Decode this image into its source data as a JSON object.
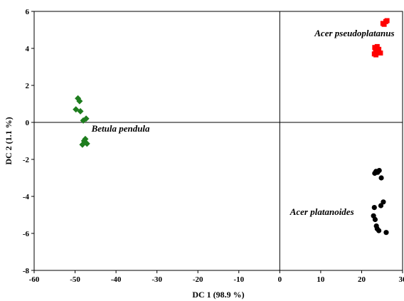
{
  "chart_data": {
    "type": "scatter",
    "title": "",
    "xlabel": "DC 1 (98.9 %)",
    "ylabel": "DC 2 (1.1 %)",
    "xlim": [
      -60,
      30
    ],
    "ylim": [
      -8,
      6
    ],
    "x_ticks": [
      -60,
      -50,
      -40,
      -30,
      -20,
      -10,
      0,
      10,
      20,
      30
    ],
    "y_ticks": [
      -8,
      -6,
      -4,
      -2,
      0,
      2,
      4,
      6
    ],
    "x_tick_labels": [
      "-60",
      "-50",
      "-40",
      "-30",
      "-20",
      "-10",
      "0",
      "10",
      "20",
      "30"
    ],
    "y_tick_labels": [
      "-8",
      "-6",
      "-4",
      "-2",
      "0",
      "2",
      "4",
      "6"
    ],
    "grid": false,
    "reference_lines": {
      "x": 0,
      "y": 0
    },
    "series": [
      {
        "name": "Acer pseudoplatanus",
        "marker": "square",
        "color": "#ff0000",
        "points": [
          [
            25.2,
            5.35
          ],
          [
            25.9,
            5.45
          ],
          [
            26.2,
            5.5
          ],
          [
            25.5,
            5.3
          ],
          [
            23.2,
            4.05
          ],
          [
            23.8,
            4.1
          ],
          [
            23.4,
            3.9
          ],
          [
            24.0,
            3.8
          ],
          [
            23.1,
            3.7
          ],
          [
            24.6,
            3.75
          ],
          [
            23.5,
            3.65
          ],
          [
            24.2,
            3.95
          ]
        ]
      },
      {
        "name": "Betula pendula",
        "marker": "diamond",
        "color": "#1e7d1e",
        "points": [
          [
            -49.3,
            1.3
          ],
          [
            -48.9,
            1.15
          ],
          [
            -49.8,
            0.7
          ],
          [
            -48.7,
            0.6
          ],
          [
            -48.0,
            0.1
          ],
          [
            -47.3,
            0.2
          ],
          [
            -47.5,
            -0.9
          ],
          [
            -47.1,
            -1.15
          ],
          [
            -48.2,
            -1.2
          ],
          [
            -47.8,
            -1.0
          ]
        ]
      },
      {
        "name": "Acer platanoides",
        "marker": "circle",
        "color": "#000000",
        "points": [
          [
            23.5,
            -2.65
          ],
          [
            23.9,
            -2.7
          ],
          [
            24.3,
            -2.6
          ],
          [
            23.2,
            -2.75
          ],
          [
            24.8,
            -3.0
          ],
          [
            25.3,
            -4.3
          ],
          [
            24.7,
            -4.5
          ],
          [
            23.1,
            -4.6
          ],
          [
            22.9,
            -5.05
          ],
          [
            23.3,
            -5.25
          ],
          [
            23.8,
            -5.75
          ],
          [
            24.2,
            -5.85
          ],
          [
            26.0,
            -5.95
          ],
          [
            23.6,
            -5.6
          ]
        ]
      }
    ],
    "annotations": [
      {
        "text": "Acer pseudoplatanus",
        "x": 8.5,
        "y": 4.65,
        "anchor": "start"
      },
      {
        "text": "Betula pendula",
        "x": -46,
        "y": -0.5,
        "anchor": "start"
      },
      {
        "text": "Acer platanoides",
        "x": 2.5,
        "y": -5.0,
        "anchor": "start"
      }
    ]
  }
}
